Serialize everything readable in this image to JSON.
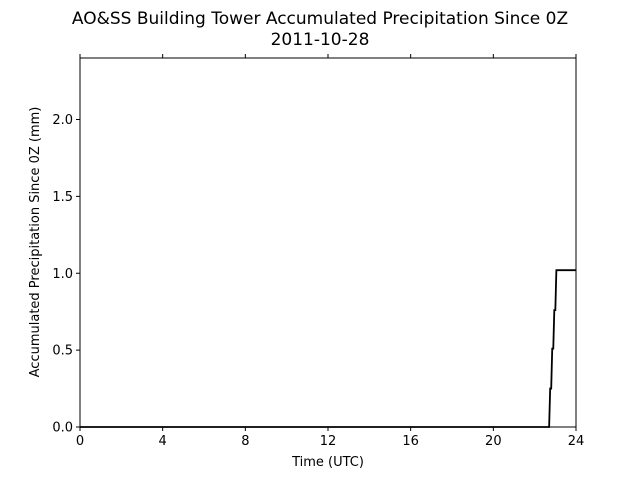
{
  "chart_data": {
    "type": "line",
    "title": "AO&SS Building Tower Accumulated Precipitation Since 0Z",
    "subtitle": "2011-10-28",
    "xlabel": "Time (UTC)",
    "ylabel": "Accumulated Precipitation Since 0Z (mm)",
    "xlim": [
      0,
      24
    ],
    "ylim": [
      0,
      2.4
    ],
    "x_ticks": [
      0,
      4,
      8,
      12,
      16,
      20,
      24
    ],
    "x_tick_labels": [
      "0",
      "4",
      "8",
      "12",
      "16",
      "20",
      "24"
    ],
    "y_ticks": [
      0,
      0.5,
      1.0,
      1.5,
      2.0
    ],
    "y_tick_labels": [
      "0.0",
      "0.5",
      "1.0",
      "1.5",
      "2.0"
    ],
    "grid": false,
    "line_color": "#000000",
    "series": [
      {
        "x": [
          0,
          22.7,
          22.75,
          22.8,
          22.85,
          22.9,
          22.95,
          23.0,
          23.05,
          23.1,
          24.0
        ],
        "y": [
          0,
          0,
          0.25,
          0.25,
          0.51,
          0.51,
          0.76,
          0.76,
          1.02,
          1.02,
          1.02
        ]
      }
    ]
  }
}
